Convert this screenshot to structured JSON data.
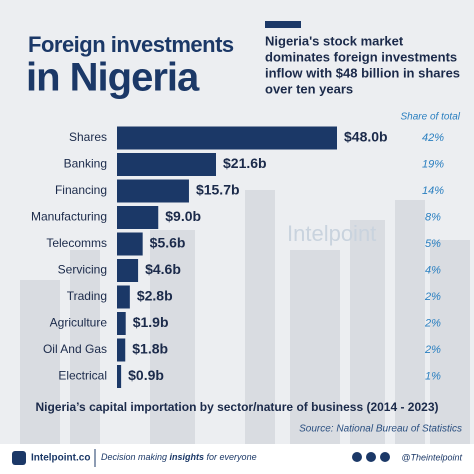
{
  "chart_data": {
    "type": "bar",
    "title_line1": "Foreign investments",
    "title_line2": "in Nigeria",
    "headline": [
      "Nigeria's stock market",
      "dominates foreign investments",
      "inflow with $48 billion in shares",
      "over ten years"
    ],
    "categories": [
      "Shares",
      "Banking",
      "Financing",
      "Manufacturing",
      "Telecomms",
      "Servicing",
      "Trading",
      "Agriculture",
      "Oil And Gas",
      "Electrical"
    ],
    "values": [
      48.0,
      21.6,
      15.7,
      9.0,
      5.6,
      4.6,
      2.8,
      1.9,
      1.8,
      0.9
    ],
    "value_labels": [
      "$48.0b",
      "$21.6b",
      "$15.7b",
      "$9.0b",
      "$5.6b",
      "$4.6b",
      "$2.8b",
      "$1.9b",
      "$1.8b",
      "$0.9b"
    ],
    "color": "#1b3867",
    "share_of_total": {
      "title": "Share of total",
      "values": [
        42,
        19,
        14,
        8,
        5,
        4,
        2,
        2,
        2,
        1
      ],
      "value_labels": [
        "42%",
        "19%",
        "14%",
        "8%",
        "5%",
        "4%",
        "2%",
        "2%",
        "2%",
        "1%"
      ]
    },
    "subtitle": "Nigeria’s capital importation by sector/nature of business (2014 - 2023)",
    "source": "Source: National Bureau of Statistics",
    "watermark": "Intelpoint"
  },
  "footer": {
    "brand": "Intelpoint.co",
    "tagline": [
      "Decision making ",
      "insights",
      " for everyone"
    ],
    "handle": "@Theintelpoint"
  }
}
